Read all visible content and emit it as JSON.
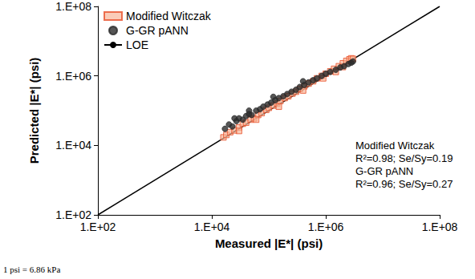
{
  "chart_data": {
    "type": "scatter",
    "x_label": "Measured |E*| (psi)",
    "y_label": "Predicted |E*| (psi)",
    "log": true,
    "grid": false,
    "legend": "top-left",
    "xlim": [
      100,
      100000000
    ],
    "ylim": [
      100,
      100000000
    ],
    "xticks": [
      {
        "value": 100,
        "label": "1.E+02"
      },
      {
        "value": 10000,
        "label": "1.E+04"
      },
      {
        "value": 1000000,
        "label": "1.E+06"
      },
      {
        "value": 100000000,
        "label": "1.E+08"
      }
    ],
    "yticks": [
      {
        "value": 100,
        "label": "1.E+02"
      },
      {
        "value": 10000,
        "label": "1.E+04"
      },
      {
        "value": 1000000,
        "label": "1.E+06"
      },
      {
        "value": 100000000,
        "label": "1.E+08"
      }
    ],
    "series": [
      {
        "name": "Modified Witczak",
        "type": "scatter",
        "marker": "square",
        "color": "#e8502a",
        "x": [
          16000,
          18000,
          21000,
          25000,
          30000,
          35000,
          40000,
          48000,
          55000,
          65000,
          75000,
          90000,
          100000,
          120000,
          140000,
          160000,
          190000,
          220000,
          260000,
          300000,
          350000,
          420000,
          500000,
          600000,
          700000,
          850000,
          1000000,
          1200000,
          1400000,
          1700000,
          2000000,
          2300000,
          2600000,
          2800000,
          3000000,
          30000,
          60000,
          150000,
          400000,
          900000,
          2000000,
          1500000
        ],
        "values": [
          17000,
          20000,
          24000,
          27000,
          33000,
          42000,
          45000,
          55000,
          60000,
          75000,
          85000,
          105000,
          120000,
          140000,
          160000,
          190000,
          230000,
          260000,
          310000,
          350000,
          420000,
          500000,
          600000,
          700000,
          850000,
          1000000,
          1150000,
          1350000,
          1600000,
          1900000,
          2300000,
          2700000,
          3000000,
          3200000,
          3100000,
          26000,
          55000,
          130000,
          380000,
          850000,
          1800000,
          1300000
        ]
      },
      {
        "name": "G-GR pANN",
        "type": "scatter",
        "marker": "circle",
        "color": "#2b2b2b",
        "x": [
          17000,
          20000,
          23000,
          27000,
          30000,
          35000,
          40000,
          45000,
          50000,
          60000,
          70000,
          80000,
          95000,
          110000,
          130000,
          150000,
          180000,
          210000,
          250000,
          300000,
          350000,
          420000,
          500000,
          600000,
          700000,
          850000,
          1000000,
          1200000,
          1500000,
          1800000,
          2100000,
          2500000,
          2800000,
          3000000,
          25000,
          45000,
          120000,
          400000
        ],
        "values": [
          30000,
          40000,
          35000,
          50000,
          60000,
          55000,
          70000,
          80000,
          75000,
          100000,
          110000,
          130000,
          150000,
          170000,
          200000,
          230000,
          260000,
          300000,
          350000,
          400000,
          480000,
          550000,
          650000,
          750000,
          850000,
          1000000,
          1150000,
          1300000,
          1500000,
          1750000,
          1900000,
          2200000,
          2400000,
          2600000,
          60000,
          100000,
          250000,
          700000
        ]
      },
      {
        "name": "LOE",
        "type": "line",
        "line_style": "solid",
        "color": "#000000",
        "x": [
          100,
          100000000
        ],
        "values": [
          100,
          100000000
        ]
      }
    ],
    "annotations": [
      "Modified Witczak",
      "R²=0.98; Se/Sy=0.19",
      "G-GR pANN",
      "R²=0.96; Se/Sy=0.27"
    ],
    "footnote": "1 psi = 6.86 kPa"
  }
}
